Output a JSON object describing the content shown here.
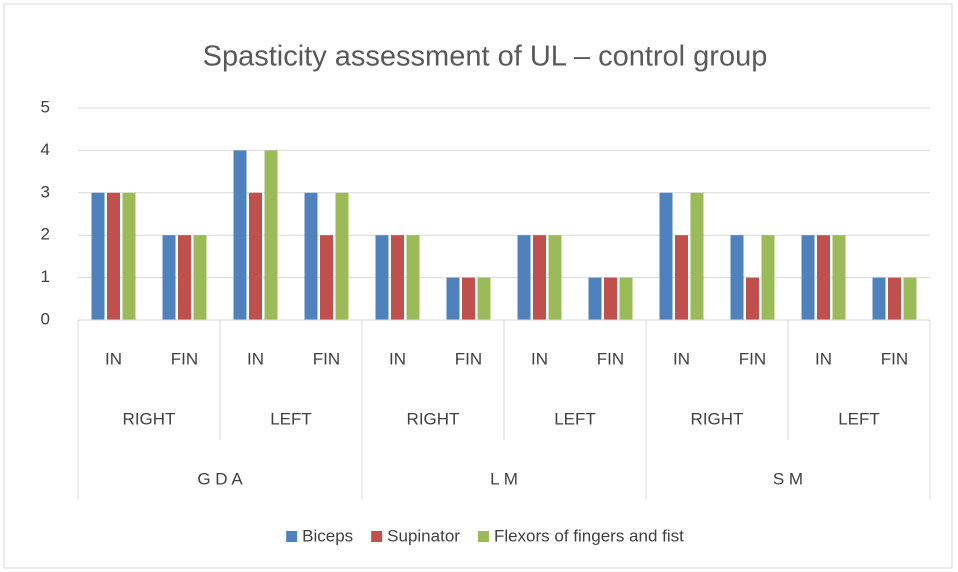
{
  "chart_data": {
    "type": "bar",
    "title": "Spasticity assessment  of UL – control group",
    "categories": [
      "IN",
      "FIN",
      "IN",
      "FIN",
      "IN",
      "FIN",
      "IN",
      "FIN",
      "IN",
      "FIN",
      "IN",
      "FIN"
    ],
    "subgroups": [
      "RIGHT",
      "LEFT",
      "RIGHT",
      "LEFT",
      "RIGHT",
      "LEFT"
    ],
    "groups": [
      "G D A",
      "L M",
      "S M"
    ],
    "series": [
      {
        "name": "Biceps",
        "color": "#4f81bd",
        "values": [
          3,
          2,
          4,
          3,
          2,
          1,
          2,
          1,
          3,
          2,
          2,
          1
        ]
      },
      {
        "name": "Supinator",
        "color": "#c0504d",
        "values": [
          3,
          2,
          3,
          2,
          2,
          1,
          2,
          1,
          2,
          1,
          2,
          1
        ]
      },
      {
        "name": "Flexors of fingers and fist",
        "color": "#9bbb59",
        "values": [
          3,
          2,
          4,
          3,
          2,
          1,
          2,
          1,
          3,
          2,
          2,
          1
        ]
      }
    ],
    "ylim": [
      0,
      5
    ],
    "yticks": [
      0,
      1,
      2,
      3,
      4,
      5
    ],
    "grid": true,
    "legend": "bottom"
  }
}
